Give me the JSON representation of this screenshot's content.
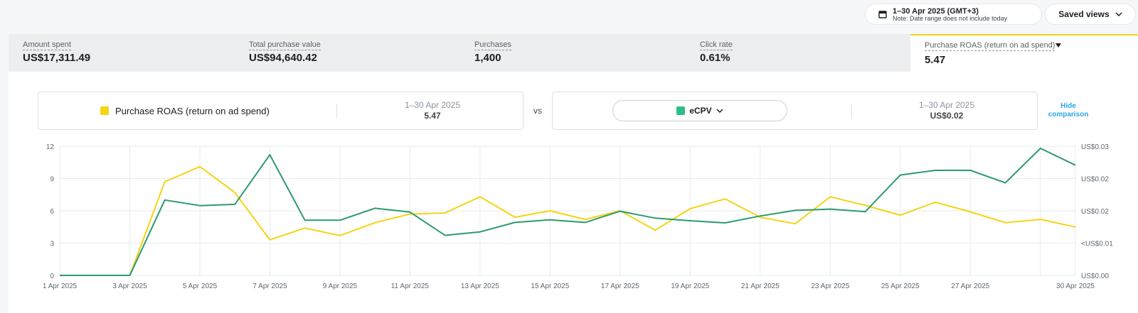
{
  "header": {
    "date_range": "1–30 Apr 2025 (GMT+3)",
    "date_note": "Note: Date range does not include today",
    "saved_views": "Saved views"
  },
  "metrics": [
    {
      "label": "Amount spent",
      "value": "US$17,311.49"
    },
    {
      "label": "Total purchase value",
      "value": "US$94,640.42"
    },
    {
      "label": "Purchases",
      "value": "1,400"
    },
    {
      "label": "Click rate",
      "value": "0.61%"
    },
    {
      "label": "Purchase ROAS (return on ad spend)",
      "value": "5.47",
      "selected": true
    }
  ],
  "comparison": {
    "primary": {
      "name": "Purchase ROAS (return on ad spend)",
      "range": "1–30 Apr 2025",
      "value": "5.47",
      "color": "#f5d414"
    },
    "vs_label": "vs",
    "secondary": {
      "name": "eCPV",
      "range": "1–30 Apr 2025",
      "value": "US$0.02",
      "color": "#2dbf85"
    },
    "hide_label_1": "Hide",
    "hide_label_2": "comparison"
  },
  "chart_data": {
    "type": "line",
    "x": [
      "1 Apr 2025",
      "2 Apr 2025",
      "3 Apr 2025",
      "4 Apr 2025",
      "5 Apr 2025",
      "6 Apr 2025",
      "7 Apr 2025",
      "8 Apr 2025",
      "9 Apr 2025",
      "10 Apr 2025",
      "11 Apr 2025",
      "12 Apr 2025",
      "13 Apr 2025",
      "14 Apr 2025",
      "15 Apr 2025",
      "16 Apr 2025",
      "17 Apr 2025",
      "18 Apr 2025",
      "19 Apr 2025",
      "20 Apr 2025",
      "21 Apr 2025",
      "22 Apr 2025",
      "23 Apr 2025",
      "24 Apr 2025",
      "25 Apr 2025",
      "26 Apr 2025",
      "27 Apr 2025",
      "28 Apr 2025",
      "29 Apr 2025",
      "30 Apr 2025"
    ],
    "x_tick_labels": [
      "1 Apr 2025",
      "3 Apr 2025",
      "5 Apr 2025",
      "7 Apr 2025",
      "9 Apr 2025",
      "11 Apr 2025",
      "13 Apr 2025",
      "15 Apr 2025",
      "17 Apr 2025",
      "19 Apr 2025",
      "21 Apr 2025",
      "23 Apr 2025",
      "25 Apr 2025",
      "27 Apr 2025",
      "30 Apr 2025"
    ],
    "y_left_ticks": [
      "0",
      "3",
      "6",
      "9",
      "12"
    ],
    "y_right_ticks": [
      "US$0.00",
      "<US$0.01",
      "US$0.02",
      "US$0.02",
      "US$0.03"
    ],
    "ylim_left": [
      0,
      12
    ],
    "ylim_right": [
      0,
      0.03
    ],
    "grid": true,
    "series": [
      {
        "name": "Purchase ROAS (return on ad spend)",
        "axis": "left",
        "color": "#f5d414",
        "values": [
          0,
          0,
          0,
          8.7,
          10.1,
          7.7,
          3.3,
          4.4,
          3.7,
          4.9,
          5.7,
          5.8,
          7.3,
          5.4,
          6.0,
          5.2,
          6.0,
          4.2,
          6.2,
          7.1,
          5.4,
          4.8,
          7.3,
          6.5,
          5.6,
          6.8,
          5.9,
          4.9,
          5.2,
          4.5
        ]
      },
      {
        "name": "eCPV",
        "axis": "right",
        "color": "#2d9a6e",
        "values": [
          0,
          0,
          0,
          0.0175,
          0.0162,
          0.0165,
          0.028,
          0.0128,
          0.0128,
          0.0156,
          0.0147,
          0.0093,
          0.0101,
          0.0123,
          0.0129,
          0.0123,
          0.0149,
          0.0133,
          0.0127,
          0.0122,
          0.0138,
          0.0151,
          0.0154,
          0.0148,
          0.0233,
          0.0244,
          0.0244,
          0.0215,
          0.0295,
          0.0256
        ]
      }
    ]
  }
}
